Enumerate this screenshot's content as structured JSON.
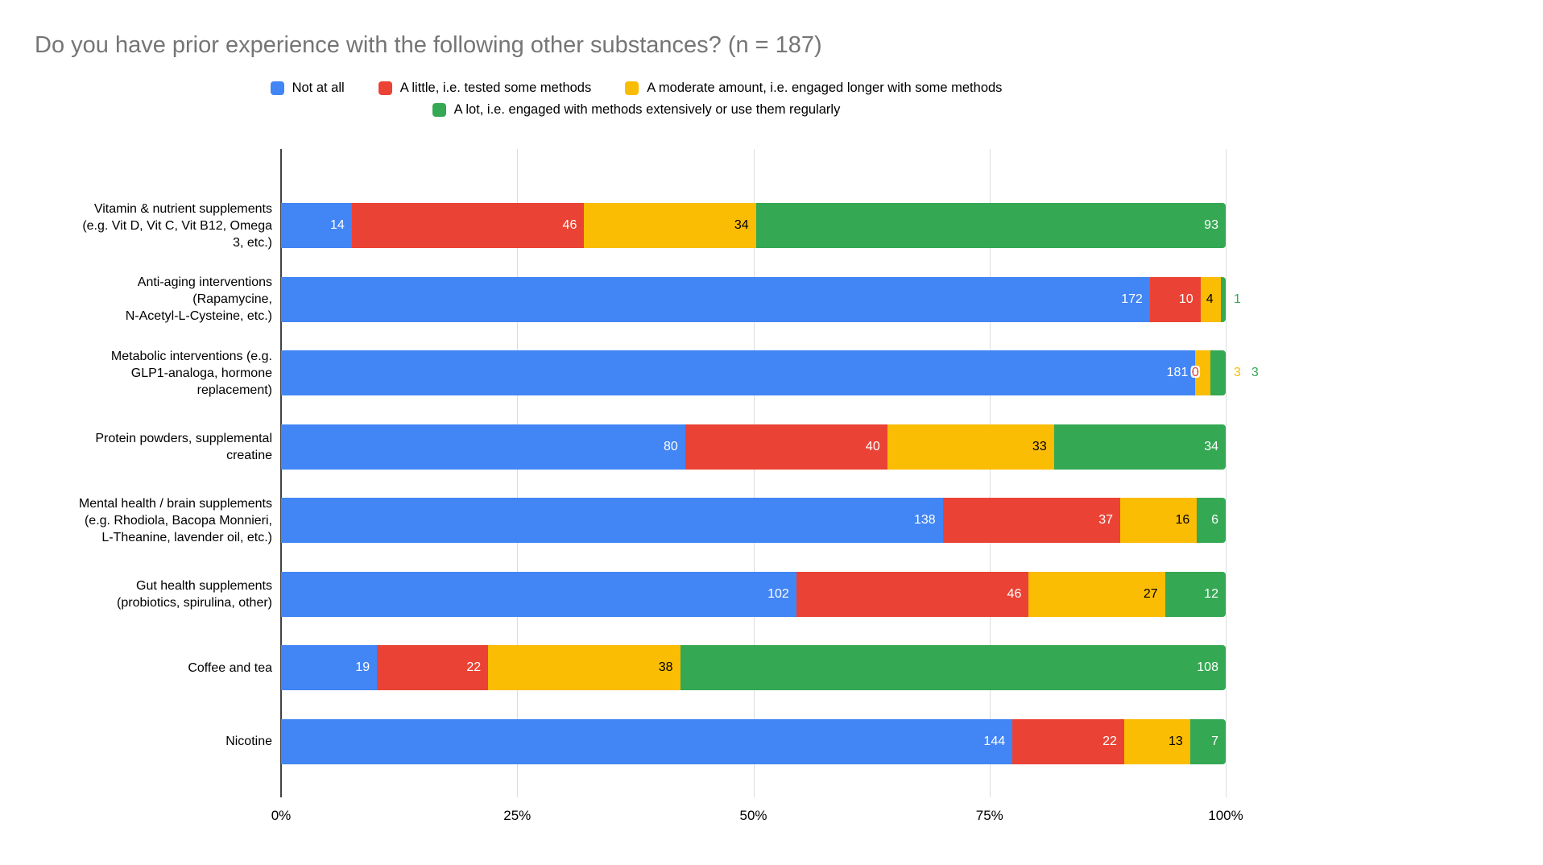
{
  "chart_data": {
    "type": "bar",
    "orientation": "horizontal",
    "stacking": "percent",
    "title": "Do you have prior experience with the following other substances? (n = 187)",
    "x_ticks": [
      "0%",
      "25%",
      "50%",
      "75%",
      "100%"
    ],
    "xlim": [
      0,
      100
    ],
    "grid": true,
    "legend_position": "top-center",
    "categories": [
      [
        "Vitamin & nutrient supplements",
        "(e.g. Vit D, Vit C, Vit B12, Omega",
        "3, etc.)"
      ],
      [
        "Anti-aging interventions",
        "(Rapamycine,",
        "N-Acetyl-L-Cysteine, etc.)"
      ],
      [
        "Metabolic interventions (e.g.",
        "GLP1-analoga, hormone",
        "replacement)"
      ],
      [
        "Protein powders, supplemental",
        "creatine"
      ],
      [
        "Mental health / brain supplements",
        "(e.g. Rhodiola, Bacopa Monnieri,",
        "L-Theanine, lavender oil, etc.)"
      ],
      [
        "Gut health supplements",
        "(probiotics, spirulina, other)"
      ],
      [
        "Coffee and tea"
      ],
      [
        "Nicotine"
      ]
    ],
    "series": [
      {
        "name": "Not at all",
        "color": "#4285F4",
        "label_color": "#ffffff",
        "values": [
          14,
          172,
          181,
          80,
          138,
          102,
          19,
          144
        ]
      },
      {
        "name": "A little, i.e. tested some methods",
        "color": "#EA4335",
        "label_color": "#ffffff",
        "values": [
          46,
          10,
          0,
          40,
          37,
          46,
          22,
          22
        ]
      },
      {
        "name": "A moderate amount, i.e. engaged longer with some methods",
        "color": "#FBBC04",
        "label_color": "#000000",
        "values": [
          34,
          4,
          3,
          33,
          16,
          27,
          38,
          13
        ]
      },
      {
        "name": "A lot, i.e. engaged with methods extensively or use them regularly",
        "color": "#34A853",
        "label_color": "#ffffff",
        "values": [
          93,
          1,
          3,
          34,
          6,
          12,
          108,
          7
        ]
      }
    ]
  }
}
